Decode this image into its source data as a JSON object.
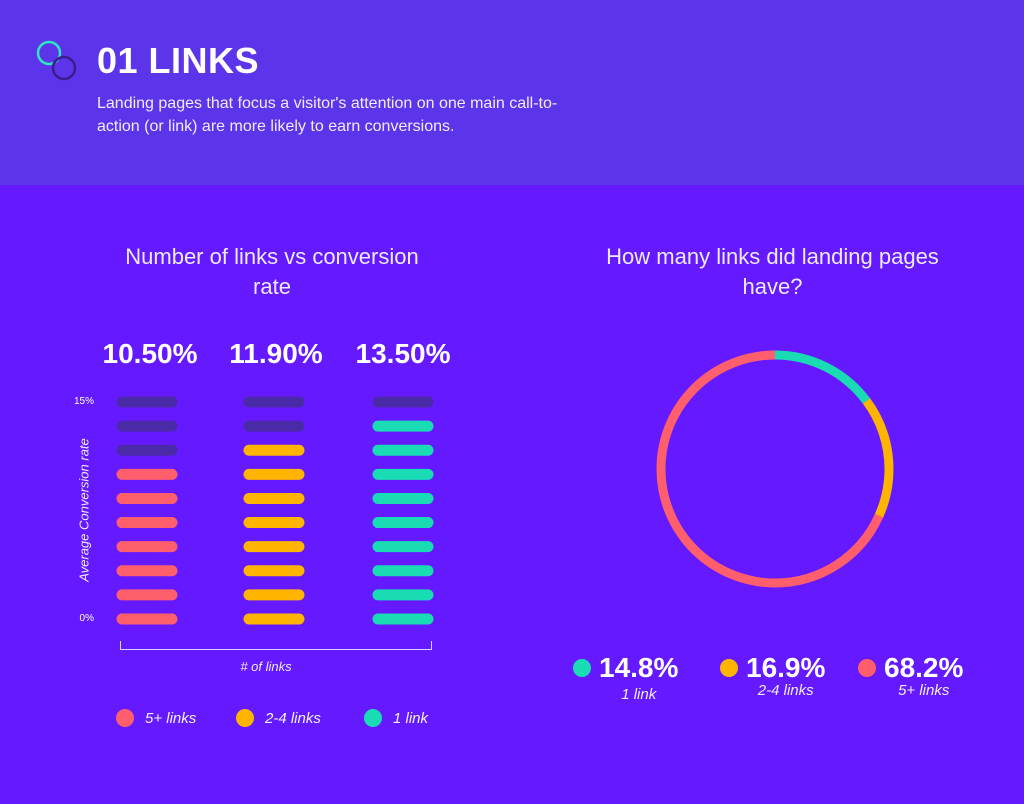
{
  "header": {
    "title": "01 LINKS",
    "subtitle": "Landing pages that focus a visitor's attention on one main call-to-action (or link) are more likely to earn conversions.",
    "logo_icon": "overlapping-circles-icon"
  },
  "colors": {
    "header_bg": "#5c35ea",
    "page_bg": "#6419ff",
    "inactive": "#4b2aa8",
    "links_5_plus": "#ff5e6c",
    "links_2_4": "#ffb400",
    "links_1": "#19dcb4"
  },
  "chart_data": [
    {
      "type": "bar",
      "title": "Number of links vs conversion rate",
      "xlabel": "# of links",
      "ylabel": "Average Conversion rate",
      "ylim": [
        0,
        15
      ],
      "y_ticks": [
        "15%",
        "0%"
      ],
      "categories": [
        "5+ links",
        "2-4 links",
        "1 link"
      ],
      "values": [
        10.5,
        11.9,
        13.5
      ],
      "value_labels": [
        "10.50%",
        "11.90%",
        "13.50%"
      ],
      "lit_segments": [
        7,
        8,
        9
      ],
      "total_segments": 10,
      "colors": [
        "#ff5e6c",
        "#ffb400",
        "#19dcb4"
      ],
      "legend": [
        {
          "label": "5+ links",
          "color": "#ff5e6c"
        },
        {
          "label": "2-4 links",
          "color": "#ffb400"
        },
        {
          "label": "1 link",
          "color": "#19dcb4"
        }
      ],
      "legend_position": "bottom"
    },
    {
      "type": "pie",
      "title": "How many links did landing pages have?",
      "slices": [
        {
          "label": "1 link",
          "value": 14.8,
          "display": "14.8%",
          "color": "#19dcb4"
        },
        {
          "label": "2-4 links",
          "value": 16.9,
          "display": "16.9%",
          "color": "#ffb400"
        },
        {
          "label": "5+ links",
          "value": 68.2,
          "display": "68.2%",
          "color": "#ff5e6c"
        }
      ],
      "legend_position": "bottom"
    }
  ]
}
